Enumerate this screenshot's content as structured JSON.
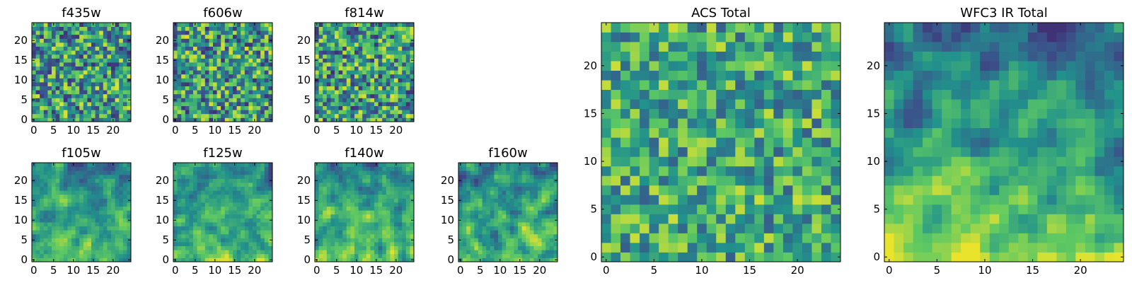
{
  "chart_data": {
    "type": "heatmap",
    "colormap": "viridis",
    "colors": [
      "#440154",
      "#3b528b",
      "#21918c",
      "#5ec962",
      "#fde725"
    ],
    "grid": false,
    "panels": [
      {
        "id": "f435w",
        "title": "f435w",
        "nx": 25,
        "ny": 25,
        "xlim": [
          -0.5,
          24.5
        ],
        "ylim": [
          -0.5,
          24.5
        ],
        "xticks": [
          0,
          5,
          10,
          15,
          20
        ],
        "yticks": [
          0,
          5,
          10,
          15,
          20
        ],
        "seed": 11,
        "smooth": 0,
        "trend": 0.0,
        "range": [
          0.15,
          0.95
        ]
      },
      {
        "id": "f606w",
        "title": "f606w",
        "nx": 25,
        "ny": 25,
        "xlim": [
          -0.5,
          24.5
        ],
        "ylim": [
          -0.5,
          24.5
        ],
        "xticks": [
          0,
          5,
          10,
          15,
          20
        ],
        "yticks": [
          0,
          5,
          10,
          15,
          20
        ],
        "seed": 23,
        "smooth": 0,
        "trend": 0.0,
        "range": [
          0.15,
          0.95
        ]
      },
      {
        "id": "f814w",
        "title": "f814w",
        "nx": 25,
        "ny": 25,
        "xlim": [
          -0.5,
          24.5
        ],
        "ylim": [
          -0.5,
          24.5
        ],
        "xticks": [
          0,
          5,
          10,
          15,
          20
        ],
        "yticks": [
          0,
          5,
          10,
          15,
          20
        ],
        "seed": 37,
        "smooth": 0,
        "trend": 0.0,
        "range": [
          0.15,
          0.95
        ]
      },
      {
        "id": "f105w",
        "title": "f105w",
        "nx": 25,
        "ny": 25,
        "xlim": [
          -0.5,
          24.5
        ],
        "ylim": [
          -0.5,
          24.5
        ],
        "xticks": [
          0,
          5,
          10,
          15,
          20
        ],
        "yticks": [
          0,
          5,
          10,
          15,
          20
        ],
        "seed": 41,
        "smooth": 1,
        "trend": 0.35,
        "range": [
          0.2,
          0.95
        ]
      },
      {
        "id": "f125w",
        "title": "f125w",
        "nx": 25,
        "ny": 25,
        "xlim": [
          -0.5,
          24.5
        ],
        "ylim": [
          -0.5,
          24.5
        ],
        "xticks": [
          0,
          5,
          10,
          15,
          20
        ],
        "yticks": [
          0,
          5,
          10,
          15,
          20
        ],
        "seed": 53,
        "smooth": 1,
        "trend": 0.3,
        "range": [
          0.2,
          0.95
        ]
      },
      {
        "id": "f140w",
        "title": "f140w",
        "nx": 25,
        "ny": 25,
        "xlim": [
          -0.5,
          24.5
        ],
        "ylim": [
          -0.5,
          24.5
        ],
        "xticks": [
          0,
          5,
          10,
          15,
          20
        ],
        "yticks": [
          0,
          5,
          10,
          15,
          20
        ],
        "seed": 67,
        "smooth": 1,
        "trend": 0.35,
        "range": [
          0.2,
          0.95
        ]
      },
      {
        "id": "f160w",
        "title": "f160w",
        "nx": 25,
        "ny": 25,
        "xlim": [
          -0.5,
          24.5
        ],
        "ylim": [
          -0.5,
          24.5
        ],
        "xticks": [
          0,
          5,
          10,
          15,
          20
        ],
        "yticks": [
          0,
          5,
          10,
          15,
          20
        ],
        "seed": 79,
        "smooth": 1,
        "trend": 0.35,
        "range": [
          0.2,
          0.95
        ]
      },
      {
        "id": "acs_total",
        "title": "ACS Total",
        "nx": 25,
        "ny": 25,
        "xlim": [
          -0.5,
          24.5
        ],
        "ylim": [
          -0.5,
          24.5
        ],
        "xticks": [
          0,
          5,
          10,
          15,
          20
        ],
        "yticks": [
          0,
          5,
          10,
          15,
          20
        ],
        "seed": 97,
        "smooth": 0,
        "trend": 0.0,
        "range": [
          0.3,
          0.92
        ]
      },
      {
        "id": "wfc3_ir_total",
        "title": "WFC3 IR Total",
        "nx": 25,
        "ny": 25,
        "xlim": [
          -0.5,
          24.5
        ],
        "ylim": [
          -0.5,
          24.5
        ],
        "xticks": [
          0,
          5,
          10,
          15,
          20
        ],
        "yticks": [
          0,
          5,
          10,
          15,
          20
        ],
        "seed": 113,
        "smooth": 1,
        "trend": 0.6,
        "range": [
          0.15,
          0.97
        ]
      }
    ]
  }
}
